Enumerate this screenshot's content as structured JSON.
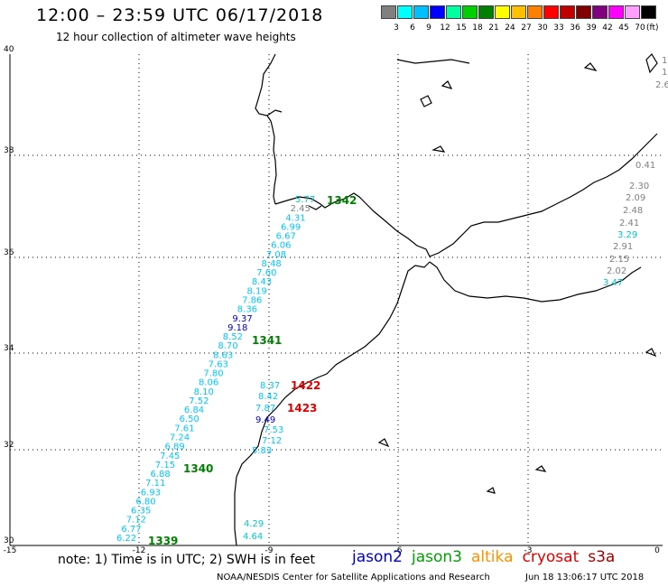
{
  "header": {
    "title": "12:00 – 23:59 UTC 06/17/2018",
    "subtitle": "12 hour collection of altimeter wave heights"
  },
  "legend": {
    "colors": [
      "#808080",
      "#00ffff",
      "#00bfff",
      "#0000ff",
      "#00ffa0",
      "#00d000",
      "#008000",
      "#ffff00",
      "#ffc000",
      "#ff8000",
      "#ff0000",
      "#c00000",
      "#800000",
      "#800080",
      "#ff00ff",
      "#ffa0ff",
      "#000000"
    ],
    "labels": [
      "3",
      "6",
      "9",
      "12",
      "15",
      "18",
      "21",
      "24",
      "27",
      "30",
      "33",
      "36",
      "39",
      "42",
      "45",
      "70"
    ],
    "unit": "(ft)"
  },
  "axes": {
    "x_ticks": [
      "-15",
      "-12",
      "-9",
      "-6",
      "-3",
      "0"
    ],
    "y_ticks": [
      "40",
      "38",
      "36",
      "34",
      "32",
      "30"
    ]
  },
  "colors": {
    "cyan": "#00c8ff",
    "teal": "#00c8c8",
    "blue": "#0000c8",
    "green": "#008000",
    "red": "#e00000",
    "gray": "#808080"
  },
  "passes": {
    "pass_1342": {
      "label": "1342",
      "values": [
        {
          "v": "5.77",
          "c": "teal"
        },
        {
          "v": "2.45",
          "c": "gray"
        },
        {
          "v": "4.31",
          "c": "cyan"
        },
        {
          "v": "6.99",
          "c": "cyan"
        },
        {
          "v": "6.67",
          "c": "cyan"
        },
        {
          "v": "6.06",
          "c": "cyan"
        },
        {
          "v": "7.08",
          "c": "cyan"
        },
        {
          "v": "8.48",
          "c": "cyan"
        },
        {
          "v": "7.60",
          "c": "cyan"
        },
        {
          "v": "8.43",
          "c": "cyan"
        },
        {
          "v": "8.19",
          "c": "cyan"
        },
        {
          "v": "7.86",
          "c": "cyan"
        },
        {
          "v": "8.36",
          "c": "cyan"
        },
        {
          "v": "9.37",
          "c": "blue"
        },
        {
          "v": "9.18",
          "c": "blue"
        },
        {
          "v": "8.52",
          "c": "cyan"
        },
        {
          "v": "8.70",
          "c": "cyan"
        },
        {
          "v": "8.63",
          "c": "cyan"
        },
        {
          "v": "7.63",
          "c": "cyan"
        },
        {
          "v": "7.80",
          "c": "cyan"
        },
        {
          "v": "8.06",
          "c": "cyan"
        },
        {
          "v": "8.10",
          "c": "cyan"
        },
        {
          "v": "7.52",
          "c": "cyan"
        },
        {
          "v": "6.84",
          "c": "cyan"
        },
        {
          "v": "6.50",
          "c": "cyan"
        },
        {
          "v": "7.61",
          "c": "cyan"
        },
        {
          "v": "7.24",
          "c": "cyan"
        },
        {
          "v": "6.89",
          "c": "cyan"
        },
        {
          "v": "7.45",
          "c": "cyan"
        },
        {
          "v": "7.15",
          "c": "cyan"
        },
        {
          "v": "6.88",
          "c": "cyan"
        },
        {
          "v": "7.11",
          "c": "cyan"
        },
        {
          "v": "6.93",
          "c": "cyan"
        },
        {
          "v": "6.80",
          "c": "cyan"
        },
        {
          "v": "6.35",
          "c": "cyan"
        },
        {
          "v": "7.12",
          "c": "cyan"
        },
        {
          "v": "6.77",
          "c": "cyan"
        },
        {
          "v": "6.22",
          "c": "cyan"
        }
      ]
    },
    "pass_1341": {
      "label": "1341"
    },
    "pass_1340": {
      "label": "1340"
    },
    "pass_1339": {
      "label": "1339"
    },
    "pass_1422": {
      "label": "1422"
    },
    "pass_1423": {
      "label": "1423"
    },
    "coastal": {
      "values": [
        {
          "v": "8.37",
          "c": "cyan"
        },
        {
          "v": "8.42",
          "c": "cyan"
        },
        {
          "v": "7.87",
          "c": "cyan"
        },
        {
          "v": "9.49",
          "c": "blue"
        },
        {
          "v": "7.53",
          "c": "cyan"
        },
        {
          "v": "7.12",
          "c": "cyan"
        },
        {
          "v": "5.83",
          "c": "cyan"
        },
        {
          "v": "4.29",
          "c": "teal"
        },
        {
          "v": "4.64",
          "c": "teal"
        }
      ]
    },
    "east": {
      "values": [
        {
          "v": "0.41",
          "c": "gray"
        },
        {
          "v": "2.30",
          "c": "gray"
        },
        {
          "v": "2.09",
          "c": "gray"
        },
        {
          "v": "2.48",
          "c": "gray"
        },
        {
          "v": "2.41",
          "c": "gray"
        },
        {
          "v": "3.29",
          "c": "teal"
        },
        {
          "v": "2.91",
          "c": "gray"
        },
        {
          "v": "2.15",
          "c": "gray"
        },
        {
          "v": "2.02",
          "c": "gray"
        },
        {
          "v": "3.47",
          "c": "teal"
        }
      ]
    },
    "edge": {
      "values": [
        {
          "v": "1",
          "c": "gray"
        },
        {
          "v": "1",
          "c": "gray"
        },
        {
          "v": "2.6",
          "c": "gray"
        }
      ]
    }
  },
  "note": "note: 1) Time is in UTC; 2) SWH is in feet",
  "satellites": [
    {
      "name": "jason2",
      "color": "#0000c8"
    },
    {
      "name": "jason3",
      "color": "#00a000"
    },
    {
      "name": "altika",
      "color": "#ff9000"
    },
    {
      "name": "cryosat",
      "color": "#e00000"
    },
    {
      "name": "s3a",
      "color": "#a00000"
    }
  ],
  "footer": {
    "center": "NOAA/NESDIS Center for Satellite Applications and Research",
    "timestamp": "Jun 18 13:06:17 UTC 2018"
  }
}
